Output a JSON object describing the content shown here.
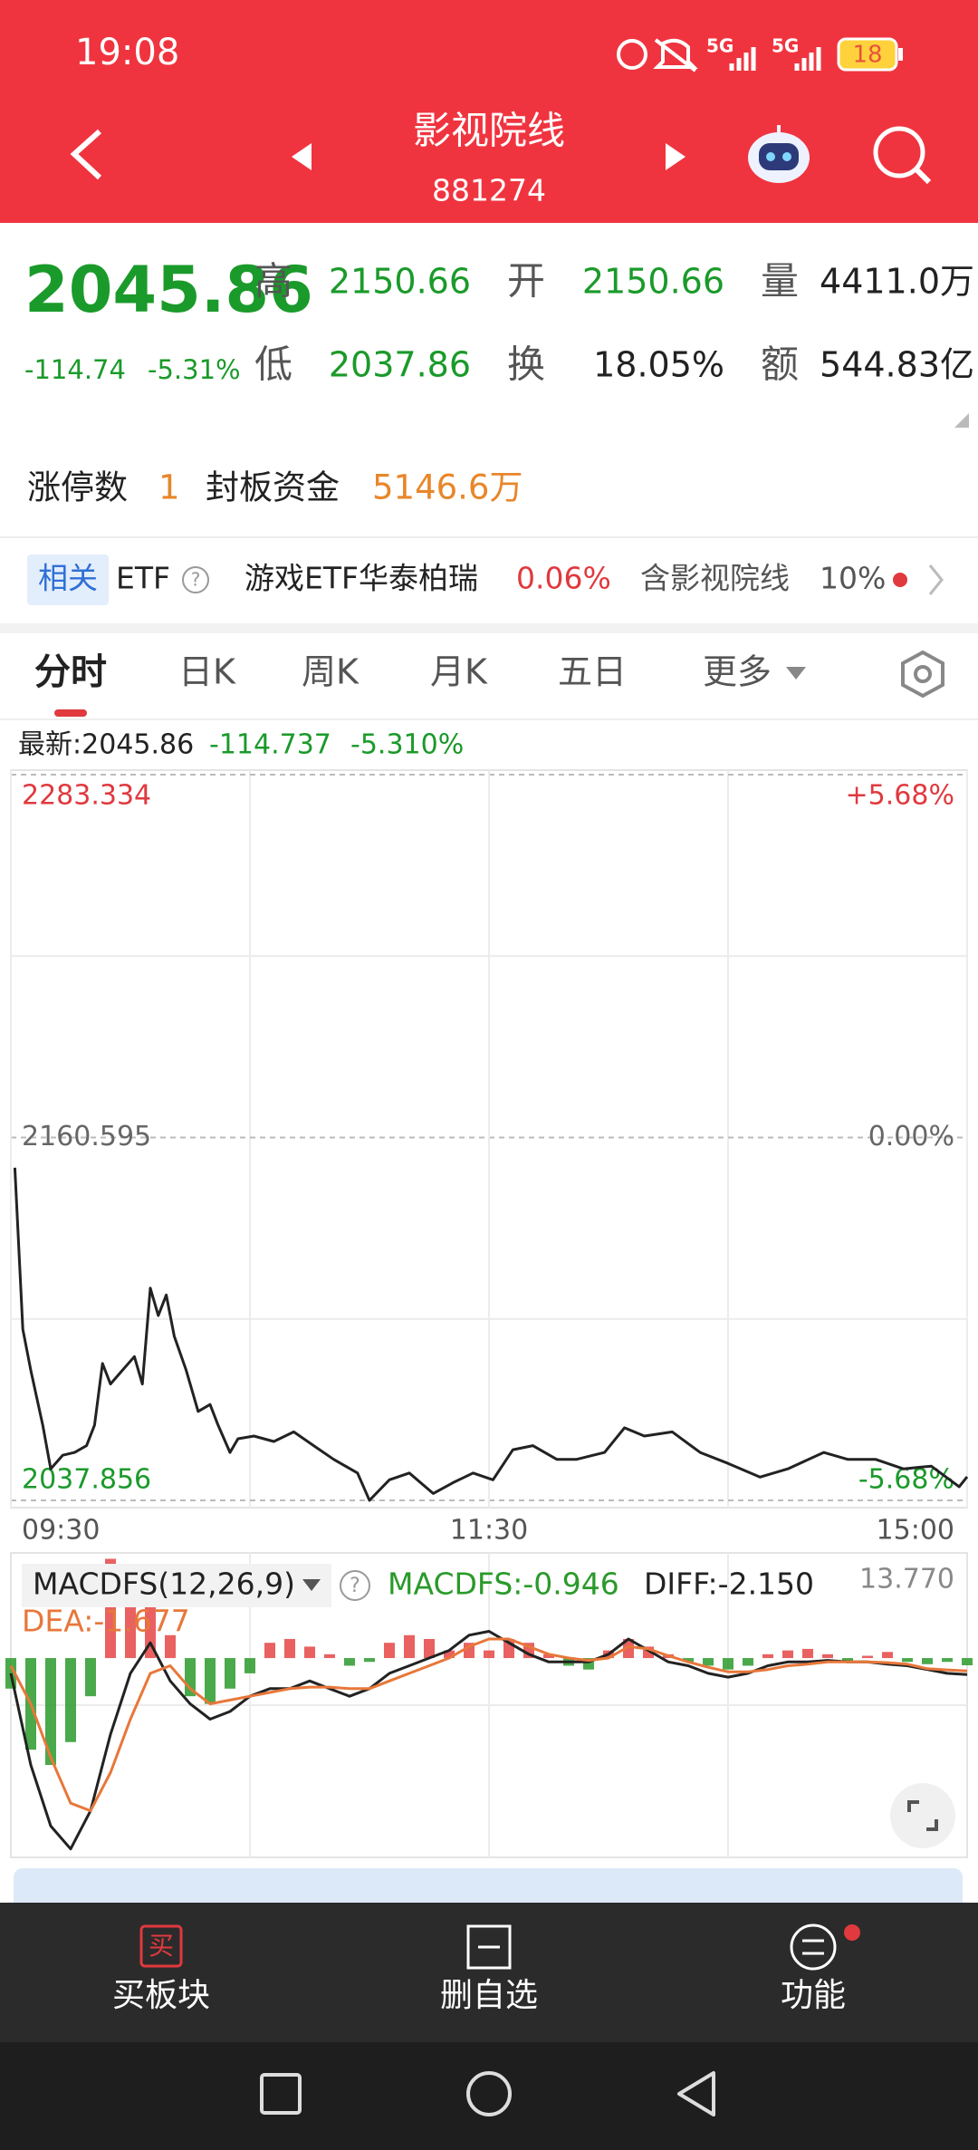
{
  "status_bar": {
    "time": "19:08",
    "network": [
      "5G",
      "5G"
    ],
    "battery": "18"
  },
  "header": {
    "title": "影视院线",
    "code": "881274"
  },
  "quote": {
    "price": "2045.86",
    "change": "-114.74",
    "change_pct": "-5.31%",
    "stats": [
      {
        "label": "高",
        "value": "2150.66"
      },
      {
        "label": "开",
        "value": "2150.66"
      },
      {
        "label": "量",
        "value": "4411.0万"
      },
      {
        "label": "低",
        "value": "2037.86"
      },
      {
        "label": "换",
        "value": "18.05%"
      },
      {
        "label": "额",
        "value": "544.83亿"
      }
    ]
  },
  "limit_up": {
    "label": "涨停数",
    "count": "1",
    "fund_label": "封板资金",
    "fund": "5146.6万"
  },
  "etf_row": {
    "badge": "相关",
    "label": "ETF",
    "help": "?",
    "etf_name": "游戏ETF华泰柏瑞",
    "etf_change": "0.06%",
    "holding_label": "含影视院线",
    "holding_pct": "10%"
  },
  "tabs": [
    "分时",
    "日K",
    "周K",
    "月K",
    "五日",
    "更多"
  ],
  "latest": {
    "label": "最新:2045.86",
    "change": "-114.737",
    "change_pct": "-5.310%"
  },
  "chart_data": [
    {
      "type": "line",
      "color": "#222222",
      "x": [
        1,
        3,
        5,
        8,
        10,
        13,
        16,
        19,
        21,
        23,
        25,
        28,
        31,
        33,
        35,
        37,
        39,
        41,
        44,
        47,
        50,
        52,
        55,
        57,
        61,
        66,
        71,
        76,
        81,
        87,
        90,
        95,
        100,
        106,
        111,
        116,
        121,
        126,
        131,
        137,
        142,
        149,
        154,
        159,
        166,
        173,
        180,
        188,
        195,
        204,
        210,
        217,
        224,
        231,
        238,
        240
      ],
      "values": [
        2150.4,
        2095.75,
        2081.86,
        2063.33,
        2048.51,
        2053.13,
        2054.06,
        2056.38,
        2063.33,
        2084.17,
        2077.22,
        2081.86,
        2086.48,
        2077.22,
        2109.64,
        2100.38,
        2107.33,
        2093.43,
        2081.86,
        2067.96,
        2070.27,
        2063.33,
        2054.06,
        2058.69,
        2059.62,
        2057.77,
        2061.01,
        2056.38,
        2051.75,
        2047.12,
        2037.86,
        2044.8,
        2047.12,
        2040.17,
        2043.87,
        2047.12,
        2044.8,
        2054.99,
        2056.38,
        2051.75,
        2051.75,
        2054.06,
        2062.4,
        2059.62,
        2061.01,
        2054.06,
        2050.36,
        2045.73,
        2048.51,
        2054.06,
        2051.75,
        2051.75,
        2048.51,
        2049.43,
        2042.49,
        2045.86
      ],
      "xlim": [
        0,
        240
      ],
      "xticks": [
        {
          "value": 0,
          "label": "09:30"
        },
        {
          "value": 120,
          "label": "11:30"
        },
        {
          "value": 240,
          "label": "15:00"
        }
      ],
      "ylim": [
        2037.856,
        2283.334
      ],
      "yticks": [
        2037.856,
        2160.595,
        2283.334
      ],
      "ytick_colors": [
        "#1a9a2a",
        "#666666",
        "#e0393e"
      ],
      "y2lim": [
        -5.68,
        5.68
      ],
      "y2ticks": [
        {
          "value": -5.68,
          "label": "-5.68%"
        },
        {
          "value": 0,
          "label": "0.00%"
        },
        {
          "value": 5.68,
          "label": "+5.68%"
        }
      ]
    },
    {
      "type": "macd",
      "indicator": "MACDFS(12,26,9)",
      "help": "?",
      "x": [
        0,
        5,
        10,
        15,
        20,
        25,
        30,
        35,
        40,
        45,
        50,
        55,
        60,
        65,
        70,
        75,
        80,
        85,
        90,
        95,
        100,
        105,
        110,
        115,
        120,
        125,
        130,
        135,
        140,
        145,
        150,
        155,
        160,
        165,
        170,
        175,
        180,
        185,
        190,
        195,
        200,
        205,
        210,
        215,
        220,
        225,
        230,
        235,
        240
      ],
      "xlim": [
        0,
        240
      ],
      "ylim": [
        -26.1,
        13.77
      ],
      "yticks": [
        {
          "value": 13.77,
          "label": "13.770"
        }
      ],
      "series": [
        {
          "name": "MACDFS:-0.946",
          "type": "bar",
          "color": "#2a9a2a",
          "up_color": "#e54545",
          "values": [
            -4,
            -12,
            -14,
            -11,
            -5,
            13,
            11,
            8,
            3,
            -5,
            -6,
            -4,
            -2,
            2,
            2.5,
            1.5,
            0.5,
            -1,
            -0.5,
            2,
            3,
            2.5,
            1,
            2,
            1,
            2.5,
            2,
            0.5,
            -1,
            -1.5,
            1,
            2.5,
            1.5,
            0.5,
            -0.5,
            -1,
            -1.5,
            -1,
            0.5,
            1,
            1.2,
            0.5,
            -0.5,
            0.3,
            0.8,
            -0.5,
            -0.8,
            -0.5,
            -0.946
          ]
        },
        {
          "name": "DIFF:-2.150",
          "type": "line",
          "color": "#222222",
          "values": [
            -2,
            -14,
            -22,
            -25,
            -20,
            -10,
            -2,
            2,
            -3,
            -6,
            -8,
            -7,
            -5,
            -4,
            -4,
            -3,
            -4,
            -5,
            -4,
            -2,
            -1,
            0,
            1,
            3,
            3.5,
            2,
            0.5,
            -0.5,
            -0.5,
            -0.5,
            0.5,
            2.5,
            1,
            -0.5,
            -1,
            -2,
            -2.5,
            -2,
            -1,
            -0.5,
            -0.5,
            -0.3,
            -0.5,
            -0.5,
            -0.8,
            -1,
            -1.5,
            -2,
            -2.15
          ]
        },
        {
          "name": "DEA:-1.677",
          "type": "line",
          "color": "#e8773a",
          "values": [
            -1,
            -6,
            -13,
            -19,
            -20,
            -15,
            -8,
            -2,
            -1,
            -4,
            -6,
            -5.5,
            -5,
            -4.5,
            -4,
            -3.8,
            -3.8,
            -4,
            -4,
            -3,
            -2,
            -1,
            0,
            1.5,
            2.5,
            2.5,
            1.5,
            0.5,
            0,
            -0.3,
            0,
            1.5,
            1.2,
            0.3,
            -0.5,
            -1.2,
            -1.8,
            -1.8,
            -1.5,
            -1,
            -0.8,
            -0.5,
            -0.5,
            -0.5,
            -0.6,
            -0.8,
            -1.4,
            -1.55,
            -1.677
          ]
        }
      ]
    }
  ],
  "bottom_nav": [
    {
      "icon": "买",
      "label": "买板块"
    },
    {
      "label": "删自选"
    },
    {
      "label": "功能"
    }
  ]
}
